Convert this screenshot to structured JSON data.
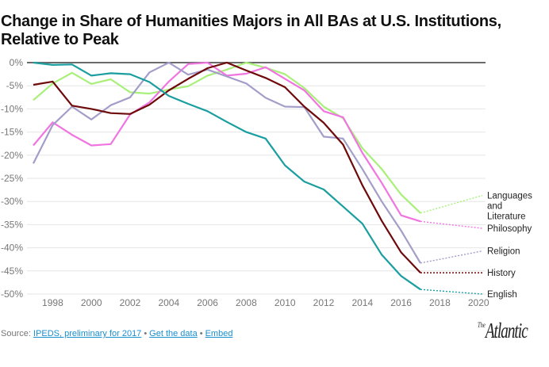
{
  "title": "Change in Share of Humanities Majors in All BAs at U.S. Institutions, Relative to Peak",
  "footer": {
    "source_prefix": "Source: ",
    "source_link": "IPEDS, preliminary for 2017",
    "separator": "•",
    "data_link": "Get the data",
    "embed_link": "Embed",
    "logo_the": "The",
    "logo_name": "Atlantic"
  },
  "chart_data": {
    "type": "line",
    "title": "Change in Share of Humanities Majors in All BAs at U.S. Institutions, Relative to Peak",
    "xlabel": "",
    "ylabel": "",
    "xlim": [
      1997,
      2020
    ],
    "ylim": [
      -50,
      0
    ],
    "grid": true,
    "legend": "right (inline labels at line ends)",
    "x_ticks": [
      1998,
      2000,
      2002,
      2004,
      2006,
      2008,
      2010,
      2012,
      2014,
      2016,
      2018,
      2020
    ],
    "y_ticks": [
      0,
      -5,
      -10,
      -15,
      -20,
      -25,
      -30,
      -35,
      -40,
      -45,
      -50
    ],
    "y_tick_labels": [
      "0%",
      "-5%",
      "-10%",
      "-15%",
      "-20%",
      "-25%",
      "-30%",
      "-35%",
      "-40%",
      "-45%",
      "-50%"
    ],
    "x": [
      1997,
      1998,
      1999,
      2000,
      2001,
      2002,
      2003,
      2004,
      2005,
      2006,
      2007,
      2008,
      2009,
      2010,
      2011,
      2012,
      2013,
      2014,
      2015,
      2016,
      2017
    ],
    "series": [
      {
        "name": "Languages and Literature",
        "label_lines": [
          "Languages",
          "and",
          "Literature"
        ],
        "color": "#a8f07a",
        "values": [
          -8.1,
          -4.5,
          -2.2,
          -4.6,
          -3.6,
          -6.4,
          -6.7,
          -5.8,
          -5.1,
          -2.8,
          -1.5,
          0,
          -1.1,
          -2.5,
          -5.5,
          -9.5,
          -12,
          -18.5,
          -23,
          -28.5,
          -32.5
        ],
        "projection_end": -28.7
      },
      {
        "name": "Philosophy",
        "label_lines": [
          "Philosophy"
        ],
        "color": "#f075e0",
        "values": [
          -17.9,
          -12.9,
          -15.6,
          -17.9,
          -17.6,
          -11.2,
          -8.6,
          -4.1,
          -0.3,
          0,
          -2.8,
          -2.4,
          -1,
          -3.5,
          -6,
          -10.5,
          -11.8,
          -19.5,
          -26,
          -33,
          -34.3
        ],
        "projection_end": -35.8
      },
      {
        "name": "Religion",
        "label_lines": [
          "Religion"
        ],
        "color": "#a39ec9",
        "values": [
          -21.8,
          -13.5,
          -9.5,
          -12.3,
          -9.2,
          -7.5,
          -2.1,
          0,
          -2.6,
          -1.5,
          -3,
          -4.5,
          -7.6,
          -9.5,
          -9.6,
          -16,
          -16.4,
          -23,
          -30,
          -36.3,
          -43.3
        ],
        "projection_end": -40.7
      },
      {
        "name": "History",
        "label_lines": [
          "History"
        ],
        "color": "#6e0a0a",
        "values": [
          -4.8,
          -4.1,
          -9.3,
          -10,
          -10.9,
          -11.1,
          -9.1,
          -6,
          -3.5,
          -1.2,
          0,
          -1.7,
          -3.3,
          -5.3,
          -9.5,
          -13,
          -17.7,
          -26.5,
          -34.2,
          -41,
          -45.4
        ],
        "projection_end": -45.4
      },
      {
        "name": "English",
        "label_lines": [
          "English"
        ],
        "color": "#1a9ea0",
        "values": [
          0,
          -0.5,
          -0.4,
          -2.8,
          -2.3,
          -2.5,
          -4.2,
          -7.2,
          -8.9,
          -10.5,
          -12.8,
          -15,
          -16.4,
          -22.2,
          -25.7,
          -27.4,
          -31.1,
          -34.8,
          -41.5,
          -46.1,
          -49
        ],
        "projection_end": -50
      }
    ],
    "label_positions_pct": [
      -28.7,
      -35.8,
      -40.7,
      -45.4,
      -50
    ]
  }
}
